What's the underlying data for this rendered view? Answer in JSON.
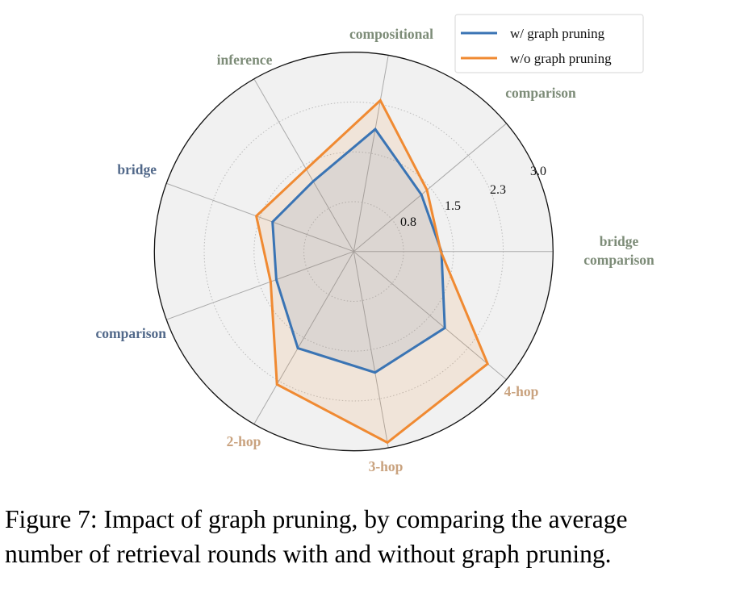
{
  "chart_data": {
    "type": "radar",
    "title": "",
    "categories": [
      {
        "label": [
          "bridge",
          "comparison"
        ],
        "color": "#7d8c78"
      },
      {
        "label": [
          "comparison"
        ],
        "color": "#7d8c78"
      },
      {
        "label": [
          "compositional"
        ],
        "color": "#7d8c78"
      },
      {
        "label": [
          "inference"
        ],
        "color": "#7d8c78"
      },
      {
        "label": [
          "bridge"
        ],
        "color": "#52698a"
      },
      {
        "label": [
          "comparison"
        ],
        "color": "#52698a"
      },
      {
        "label": [
          "2-hop"
        ],
        "color": "#c9a27e"
      },
      {
        "label": [
          "3-hop"
        ],
        "color": "#c9a27e"
      },
      {
        "label": [
          "4-hop"
        ],
        "color": "#c9a27e"
      }
    ],
    "radial_ticks": [
      0.75,
      1.5,
      2.25,
      3.0
    ],
    "radial_tick_labels": [
      "0.8",
      "1.5",
      "2.3",
      "3.0"
    ],
    "rlim": [
      0,
      3.0
    ],
    "grid": true,
    "legend_position": "top-right",
    "series": [
      {
        "name": "w/ graph pruning",
        "color": "#3a74b4",
        "values": [
          1.32,
          1.33,
          1.87,
          1.22,
          1.3,
          1.24,
          1.68,
          1.85,
          1.79
        ]
      },
      {
        "name": "w/o graph pruning",
        "color": "#f08a32",
        "values": [
          1.31,
          1.44,
          2.31,
          1.43,
          1.56,
          1.33,
          2.31,
          2.92,
          2.63
        ]
      }
    ]
  },
  "caption": {
    "line1": "Figure 7: Impact of graph pruning, by comparing the average",
    "line2": "number of retrieval rounds with and without graph pruning."
  }
}
